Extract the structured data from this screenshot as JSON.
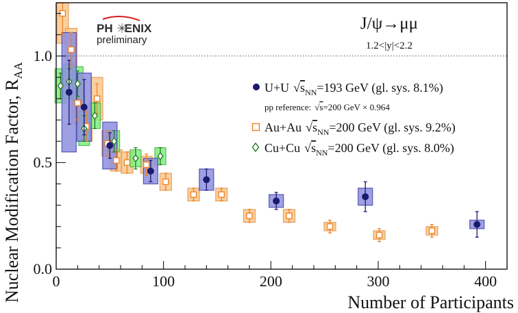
{
  "chart_data": {
    "type": "scatter",
    "title": "J/ψ→μμ",
    "subtitle": "1.2<|y|<2.2",
    "logo": {
      "brand_left": "PH",
      "brand_right": "ENIX",
      "tag": "preliminary"
    },
    "xlabel": "Number of Participants",
    "ylabel": "Nuclear Modification Factor, R",
    "ylabel_sub": "AA",
    "xlim": [
      0,
      420
    ],
    "ylim": [
      0,
      1.25
    ],
    "x_ticks": [
      0,
      100,
      200,
      300,
      400
    ],
    "x_tick_labels": [
      "0",
      "100",
      "200",
      "300",
      "400"
    ],
    "y_ticks": [
      0,
      0.5,
      1.0
    ],
    "y_tick_labels": [
      "0.0",
      "0.5",
      "1.0"
    ],
    "reference_line": 1.0,
    "legend_position": "right",
    "legend": [
      {
        "series": "UU",
        "pre": "U+U",
        "sqrt": "s",
        "sub": "NN",
        "post": "=193 GeV (gl. sys. 8.1%)"
      },
      {
        "series": "note",
        "text_a": "pp reference:",
        "sqrt": "s",
        "text_b": "=200 GeV × 0.964"
      },
      {
        "series": "AuAu",
        "pre": "Au+Au",
        "sqrt": "s",
        "sub": "NN",
        "post": "=200 GeV (gl. sys. 9.2%)"
      },
      {
        "series": "CuCu",
        "pre": "Cu+Cu",
        "sqrt": "s",
        "sub": "NN",
        "post": "=200 GeV (gl. sys. 8.0%)"
      }
    ],
    "series": [
      {
        "key": "UU",
        "marker": "filled-circle",
        "color": "#1a1a6e",
        "box_fill": "#8f8fe0",
        "box_stroke": "#3a3aa8",
        "points": [
          {
            "x": 12,
            "y": 0.83,
            "stat": 0.15,
            "sys": 0.28
          },
          {
            "x": 26,
            "y": 0.76,
            "stat": 0.13,
            "sys": 0.16
          },
          {
            "x": 50,
            "y": 0.58,
            "stat": 0.06,
            "sys": 0.11
          },
          {
            "x": 88,
            "y": 0.46,
            "stat": 0.05,
            "sys": 0.06
          },
          {
            "x": 140,
            "y": 0.42,
            "stat": 0.05,
            "sys": 0.05
          },
          {
            "x": 205,
            "y": 0.32,
            "stat": 0.04,
            "sys": 0.03
          },
          {
            "x": 288,
            "y": 0.34,
            "stat": 0.07,
            "sys": 0.04
          },
          {
            "x": 392,
            "y": 0.21,
            "stat": 0.06,
            "sys": 0.02
          }
        ]
      },
      {
        "key": "AuAu",
        "marker": "open-square",
        "color": "#f08020",
        "box_fill": "#f8c890",
        "box_stroke": "#e89040",
        "points": [
          {
            "x": 6,
            "y": 1.2,
            "stat": 0.1,
            "sys": 0.14
          },
          {
            "x": 14,
            "y": 1.03,
            "stat": 0.08,
            "sys": 0.1
          },
          {
            "x": 20,
            "y": 0.78,
            "stat": 0.08,
            "sys": 0.1
          },
          {
            "x": 28,
            "y": 0.67,
            "stat": 0.07,
            "sys": 0.07
          },
          {
            "x": 38,
            "y": 0.8,
            "stat": 0.07,
            "sys": 0.1
          },
          {
            "x": 48,
            "y": 0.59,
            "stat": 0.06,
            "sys": 0.06
          },
          {
            "x": 56,
            "y": 0.51,
            "stat": 0.05,
            "sys": 0.05
          },
          {
            "x": 66,
            "y": 0.5,
            "stat": 0.05,
            "sys": 0.05
          },
          {
            "x": 84,
            "y": 0.49,
            "stat": 0.05,
            "sys": 0.04
          },
          {
            "x": 102,
            "y": 0.41,
            "stat": 0.04,
            "sys": 0.04
          },
          {
            "x": 128,
            "y": 0.35,
            "stat": 0.03,
            "sys": 0.03
          },
          {
            "x": 154,
            "y": 0.35,
            "stat": 0.03,
            "sys": 0.03
          },
          {
            "x": 180,
            "y": 0.25,
            "stat": 0.03,
            "sys": 0.03
          },
          {
            "x": 217,
            "y": 0.25,
            "stat": 0.03,
            "sys": 0.03
          },
          {
            "x": 255,
            "y": 0.2,
            "stat": 0.03,
            "sys": 0.02
          },
          {
            "x": 301,
            "y": 0.16,
            "stat": 0.03,
            "sys": 0.02
          },
          {
            "x": 350,
            "y": 0.18,
            "stat": 0.03,
            "sys": 0.02
          }
        ]
      },
      {
        "key": "CuCu",
        "marker": "open-diamond",
        "color": "#1e7a1e",
        "box_fill": "#80ee80",
        "box_stroke": "#40b040",
        "points": [
          {
            "x": 4,
            "y": 0.86,
            "stat": 0.06,
            "sys": 0.08
          },
          {
            "x": 12,
            "y": 0.88,
            "stat": 0.06,
            "sys": 0.08
          },
          {
            "x": 20,
            "y": 0.87,
            "stat": 0.06,
            "sys": 0.08
          },
          {
            "x": 26,
            "y": 0.66,
            "stat": 0.06,
            "sys": 0.08
          },
          {
            "x": 36,
            "y": 0.72,
            "stat": 0.06,
            "sys": 0.06
          },
          {
            "x": 54,
            "y": 0.6,
            "stat": 0.05,
            "sys": 0.05
          },
          {
            "x": 74,
            "y": 0.52,
            "stat": 0.05,
            "sys": 0.04
          },
          {
            "x": 97,
            "y": 0.53,
            "stat": 0.04,
            "sys": 0.04
          }
        ]
      }
    ]
  }
}
